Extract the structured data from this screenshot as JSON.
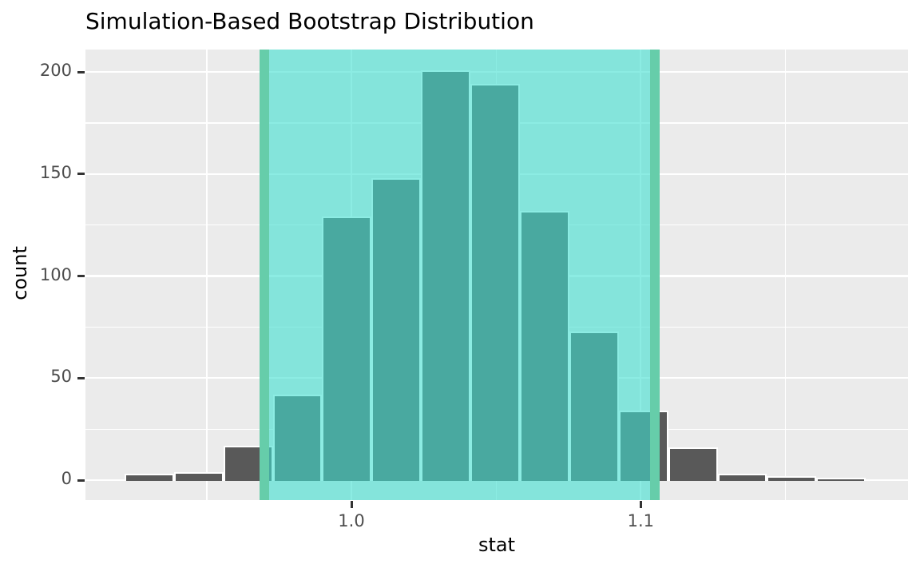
{
  "title": "Simulation-Based Bootstrap Distribution",
  "chart_data": {
    "type": "bar",
    "subtype": "histogram",
    "title": "Simulation-Based Bootstrap Distribution",
    "xlabel": "stat",
    "ylabel": "count",
    "legend_position": "none",
    "grid": "on",
    "x_ticks": [
      {
        "value": 1.0,
        "label": "1.0"
      },
      {
        "value": 1.1,
        "label": "1.1"
      }
    ],
    "x_minor_ticks": [
      0.95,
      1.05,
      1.15
    ],
    "y_ticks": [
      {
        "value": 0,
        "label": "0"
      },
      {
        "value": 50,
        "label": "50"
      },
      {
        "value": 100,
        "label": "100"
      },
      {
        "value": 150,
        "label": "150"
      },
      {
        "value": 200,
        "label": "200"
      }
    ],
    "y_minor_ticks": [
      25,
      75,
      125,
      175
    ],
    "xlim": [
      0.908,
      1.192
    ],
    "ylim": [
      -10,
      211
    ],
    "bins": {
      "start": 0.9216,
      "width": 0.01708,
      "count": 15
    },
    "bin_counts": [
      3,
      4,
      17,
      42,
      129,
      148,
      201,
      194,
      132,
      73,
      34,
      16,
      3,
      2,
      1
    ],
    "confidence_interval": {
      "lower": 0.97,
      "upper": 1.105
    },
    "colors": {
      "bar_fill": "#595959",
      "bar_stroke": "#ffffff",
      "panel_background": "#ebebeb",
      "grid_line": "#ffffff",
      "ci_shade_fill": "rgba(64,224,208,0.6)",
      "ci_endpoint_line": "#66cdaa",
      "tick_label": "#4d4d4d",
      "tick_mark": "#333333",
      "title_text": "#000000"
    }
  }
}
